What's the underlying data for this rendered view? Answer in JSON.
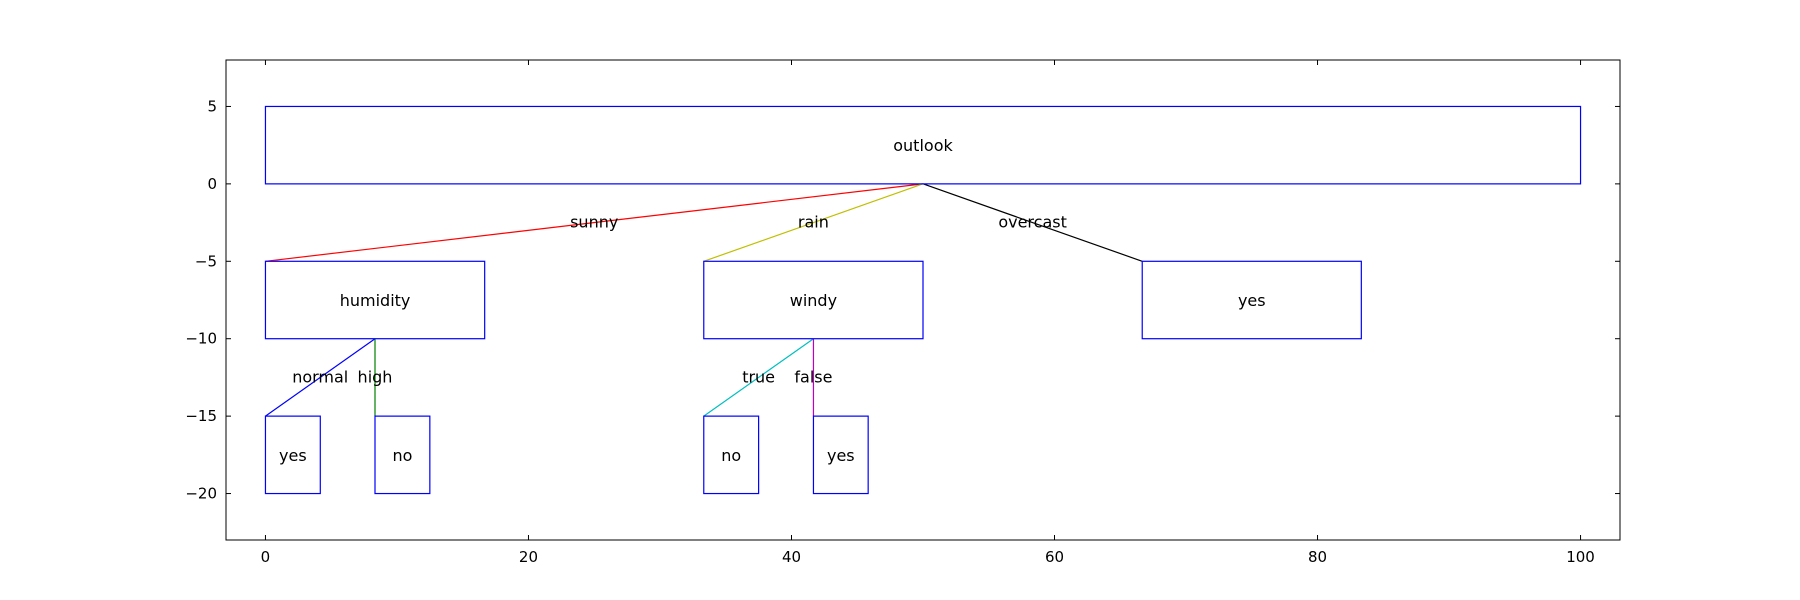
{
  "axes": {
    "xlim": [
      -3,
      103
    ],
    "ylim": [
      -23,
      8
    ],
    "x_ticks": [
      {
        "value": 0,
        "label": "0"
      },
      {
        "value": 20,
        "label": "20"
      },
      {
        "value": 40,
        "label": "40"
      },
      {
        "value": 60,
        "label": "60"
      },
      {
        "value": 80,
        "label": "80"
      },
      {
        "value": 100,
        "label": "100"
      }
    ],
    "y_ticks": [
      {
        "value": 5,
        "label": "5"
      },
      {
        "value": 0,
        "label": "0"
      },
      {
        "value": -5,
        "label": "−5"
      },
      {
        "value": -10,
        "label": "−10"
      },
      {
        "value": -15,
        "label": "−15"
      },
      {
        "value": -20,
        "label": "−20"
      }
    ]
  },
  "tree": {
    "node_color": "#0000ff",
    "nodes": [
      {
        "id": "outlook",
        "label": "outlook",
        "x0": 0,
        "x1": 100,
        "y0": 0,
        "y1": 5
      },
      {
        "id": "humidity",
        "label": "humidity",
        "x0": 0,
        "x1": 16.67,
        "y0": -10,
        "y1": -5
      },
      {
        "id": "windy",
        "label": "windy",
        "x0": 33.33,
        "x1": 50,
        "y0": -10,
        "y1": -5
      },
      {
        "id": "overcast-yes",
        "label": "yes",
        "x0": 66.67,
        "x1": 83.33,
        "y0": -10,
        "y1": -5
      },
      {
        "id": "normal-yes",
        "label": "yes",
        "x0": 0,
        "x1": 4.17,
        "y0": -20,
        "y1": -15
      },
      {
        "id": "high-no",
        "label": "no",
        "x0": 8.33,
        "x1": 12.5,
        "y0": -20,
        "y1": -15
      },
      {
        "id": "true-no",
        "label": "no",
        "x0": 33.33,
        "x1": 37.5,
        "y0": -20,
        "y1": -15
      },
      {
        "id": "false-yes",
        "label": "yes",
        "x0": 41.67,
        "x1": 45.83,
        "y0": -20,
        "y1": -15
      }
    ],
    "edges": [
      {
        "label": "sunny",
        "from": [
          50,
          0
        ],
        "to": [
          0,
          -5
        ],
        "color": "#ff0000"
      },
      {
        "label": "rain",
        "from": [
          50,
          0
        ],
        "to": [
          33.33,
          -5
        ],
        "color": "#bfbf00"
      },
      {
        "label": "overcast",
        "from": [
          50,
          0
        ],
        "to": [
          66.67,
          -5
        ],
        "color": "#000000"
      },
      {
        "label": "normal",
        "from": [
          8.33,
          -10
        ],
        "to": [
          0,
          -15
        ],
        "color": "#0000ff"
      },
      {
        "label": "high",
        "from": [
          8.33,
          -10
        ],
        "to": [
          8.33,
          -15
        ],
        "color": "#008000"
      },
      {
        "label": "true",
        "from": [
          41.67,
          -10
        ],
        "to": [
          33.33,
          -15
        ],
        "color": "#00bfbf"
      },
      {
        "label": "false",
        "from": [
          41.67,
          -10
        ],
        "to": [
          41.67,
          -15
        ],
        "color": "#bf00bf"
      }
    ]
  }
}
